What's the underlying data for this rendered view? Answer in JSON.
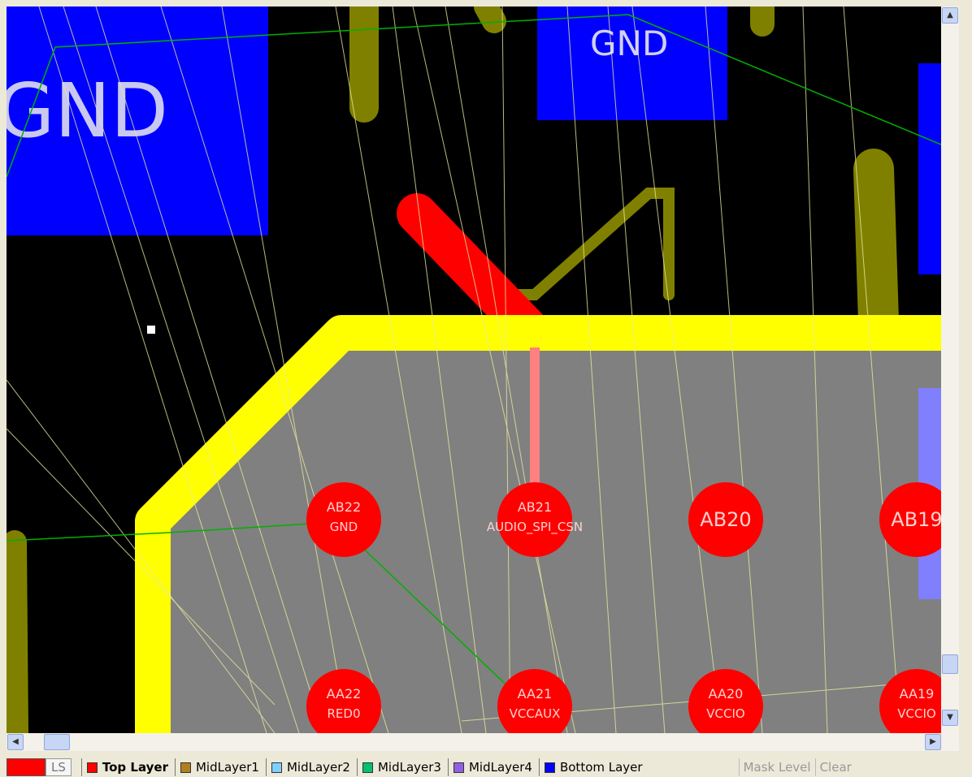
{
  "canvas": {
    "labels": [
      "GND",
      "GND"
    ]
  },
  "pads": [
    {
      "name": "AB22",
      "net": "GND"
    },
    {
      "name": "AB21",
      "net": "AUDIO_SPI_CSN"
    },
    {
      "name": "AB20"
    },
    {
      "name": "AB19"
    },
    {
      "name": "AA22",
      "net": "RED0"
    },
    {
      "name": "AA21",
      "net": "VCCAUX"
    },
    {
      "name": "AA20",
      "net": "VCCIO"
    },
    {
      "name": "AA19",
      "net": "VCCIO"
    }
  ],
  "current_layer": "LS",
  "layer_tabs": [
    {
      "label": "Top Layer",
      "color": "#ff0000",
      "active": true
    },
    {
      "label": "MidLayer1",
      "color": "#b08020"
    },
    {
      "label": "MidLayer2",
      "color": "#80d0ff"
    },
    {
      "label": "MidLayer3",
      "color": "#00c070"
    },
    {
      "label": "MidLayer4",
      "color": "#9060e0"
    },
    {
      "label": "Bottom Layer",
      "color": "#0000ff"
    }
  ],
  "buttons": [
    "Mask Level",
    "Clear"
  ]
}
